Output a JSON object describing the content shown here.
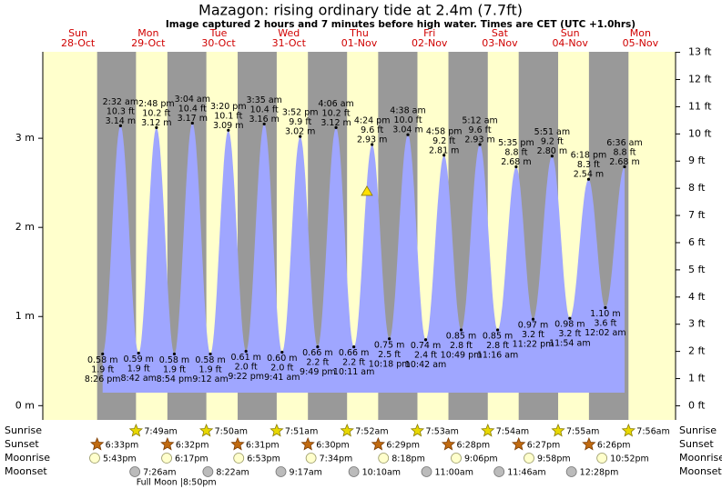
{
  "chart_data": {
    "type": "tide",
    "title": "Mazagon: rising  ordinary tide at 2.4m (7.7ft)",
    "subtitle": "Image captured 2 hours and 7 minutes before high water. Times are CET (UTC +1.0hrs)",
    "current_level": 2.4,
    "ylim": [
      -0.16,
      3.97
    ],
    "yticks": [
      {
        "value": 0,
        "label": "0 m"
      },
      {
        "value": 1,
        "label": "1 m"
      },
      {
        "value": 2,
        "label": "2 m"
      },
      {
        "value": 3,
        "label": "3 m"
      }
    ],
    "y2lim": [
      -0.52,
      13.02
    ],
    "y2ticks": [
      {
        "value": 0,
        "label": "0 ft"
      },
      {
        "value": 1,
        "label": "1 ft"
      },
      {
        "value": 2,
        "label": "2 ft"
      },
      {
        "value": 3,
        "label": "3 ft"
      },
      {
        "value": 4,
        "label": "4 ft"
      },
      {
        "value": 5,
        "label": "5 ft"
      },
      {
        "value": 6,
        "label": "6 ft"
      },
      {
        "value": 7,
        "label": "7 ft"
      },
      {
        "value": 8,
        "label": "8 ft"
      },
      {
        "value": 9,
        "label": "9 ft"
      },
      {
        "value": 10,
        "label": "10 ft"
      },
      {
        "value": 11,
        "label": "11 ft"
      },
      {
        "value": 12,
        "label": "12 ft"
      },
      {
        "value": 13,
        "label": "13 ft"
      }
    ],
    "row_labels": [
      "Sunrise",
      "Sunset",
      "Moonrise",
      "Moonset"
    ],
    "days": [
      {
        "weekday": "Sun",
        "date": "28-Oct",
        "tides": [
          {
            "time": "8:26 pm",
            "value": 0.58,
            "value_label": "0.58 m",
            "ft_label": "1.9 ft"
          }
        ],
        "sunset": "6:33pm",
        "moonrise": "5:43pm"
      },
      {
        "weekday": "Mon",
        "date": "29-Oct",
        "tides": [
          {
            "time": "2:32 am",
            "value": 3.14,
            "value_label": "3.14 m",
            "ft_label": "10.3 ft"
          },
          {
            "time": "8:42 am",
            "value": 0.59,
            "value_label": "0.59 m",
            "ft_label": "1.9 ft"
          },
          {
            "time": "2:48 pm",
            "value": 3.12,
            "value_label": "3.12 m",
            "ft_label": "10.2 ft"
          },
          {
            "time": "8:54 pm",
            "value": 0.58,
            "value_label": "0.58 m",
            "ft_label": "1.9 ft"
          }
        ],
        "sunrise": "7:49am",
        "sunset": "6:32pm",
        "moonrise": "6:17pm",
        "moonset": "7:26am",
        "moon_phase": "Full Moon |8:50pm"
      },
      {
        "weekday": "Tue",
        "date": "30-Oct",
        "tides": [
          {
            "time": "3:04 am",
            "value": 3.17,
            "value_label": "3.17 m",
            "ft_label": "10.4 ft"
          },
          {
            "time": "9:12 am",
            "value": 0.58,
            "value_label": "0.58 m",
            "ft_label": "1.9 ft"
          },
          {
            "time": "3:20 pm",
            "value": 3.09,
            "value_label": "3.09 m",
            "ft_label": "10.1 ft"
          },
          {
            "time": "9:22 pm",
            "value": 0.61,
            "value_label": "0.61 m",
            "ft_label": "2.0 ft"
          }
        ],
        "sunrise": "7:50am",
        "sunset": "6:31pm",
        "moonrise": "6:53pm",
        "moonset": "8:22am"
      },
      {
        "weekday": "Wed",
        "date": "31-Oct",
        "tides": [
          {
            "time": "3:35 am",
            "value": 3.16,
            "value_label": "3.16 m",
            "ft_label": "10.4 ft"
          },
          {
            "time": "9:41 am",
            "value": 0.6,
            "value_label": "0.60 m",
            "ft_label": "2.0 ft"
          },
          {
            "time": "3:52 pm",
            "value": 3.02,
            "value_label": "3.02 m",
            "ft_label": "9.9 ft"
          },
          {
            "time": "9:49 pm",
            "value": 0.66,
            "value_label": "0.66 m",
            "ft_label": "2.2 ft"
          }
        ],
        "sunrise": "7:51am",
        "sunset": "6:30pm",
        "moonrise": "7:34pm",
        "moonset": "9:17am"
      },
      {
        "weekday": "Thu",
        "date": "01-Nov",
        "tides": [
          {
            "time": "4:06 am",
            "value": 3.12,
            "value_label": "3.12 m",
            "ft_label": "10.2 ft"
          },
          {
            "time": "10:11 am",
            "value": 0.66,
            "value_label": "0.66 m",
            "ft_label": "2.2 ft"
          },
          {
            "time": "4:24 pm",
            "value": 2.93,
            "value_label": "2.93 m",
            "ft_label": "9.6 ft"
          },
          {
            "time": "10:18 pm",
            "value": 0.75,
            "value_label": "0.75 m",
            "ft_label": "2.5 ft"
          }
        ],
        "sunrise": "7:52am",
        "sunset": "6:29pm",
        "moonrise": "8:18pm",
        "moonset": "10:10am"
      },
      {
        "weekday": "Fri",
        "date": "02-Nov",
        "tides": [
          {
            "time": "4:38 am",
            "value": 3.04,
            "value_label": "3.04 m",
            "ft_label": "10.0 ft"
          },
          {
            "time": "10:42 am",
            "value": 0.74,
            "value_label": "0.74 m",
            "ft_label": "2.4 ft"
          },
          {
            "time": "4:58 pm",
            "value": 2.81,
            "value_label": "2.81 m",
            "ft_label": "9.2 ft"
          },
          {
            "time": "10:49 pm",
            "value": 0.85,
            "value_label": "0.85 m",
            "ft_label": "2.8 ft"
          }
        ],
        "sunrise": "7:53am",
        "sunset": "6:28pm",
        "moonrise": "9:06pm",
        "moonset": "11:00am"
      },
      {
        "weekday": "Sat",
        "date": "03-Nov",
        "tides": [
          {
            "time": "5:12 am",
            "value": 2.93,
            "value_label": "2.93 m",
            "ft_label": "9.6 ft"
          },
          {
            "time": "11:16 am",
            "value": 0.85,
            "value_label": "0.85 m",
            "ft_label": "2.8 ft"
          },
          {
            "time": "5:35 pm",
            "value": 2.68,
            "value_label": "2.68 m",
            "ft_label": "8.8 ft"
          },
          {
            "time": "11:22 pm",
            "value": 0.97,
            "value_label": "0.97 m",
            "ft_label": "3.2 ft"
          }
        ],
        "sunrise": "7:54am",
        "sunset": "6:27pm",
        "moonrise": "9:58pm",
        "moonset": "11:46am"
      },
      {
        "weekday": "Sun",
        "date": "04-Nov",
        "tides": [
          {
            "time": "5:51 am",
            "value": 2.8,
            "value_label": "2.80 m",
            "ft_label": "9.2 ft"
          },
          {
            "time": "11:54 am",
            "value": 0.98,
            "value_label": "0.98 m",
            "ft_label": "3.2 ft"
          },
          {
            "time": "6:18 pm",
            "value": 2.54,
            "value_label": "2.54 m",
            "ft_label": "8.3 ft"
          }
        ],
        "sunrise": "7:55am",
        "sunset": "6:26pm",
        "moonrise": "10:52pm",
        "moonset": "12:28pm"
      },
      {
        "weekday": "Mon",
        "date": "05-Nov",
        "tides": [
          {
            "time": "12:02 am",
            "value": 1.1,
            "value_label": "1.10 m",
            "ft_label": "3.6 ft"
          },
          {
            "time": "6:36 am",
            "value": 2.68,
            "value_label": "2.68 m",
            "ft_label": "8.8 ft"
          }
        ],
        "sunrise": "7:56am"
      }
    ]
  }
}
